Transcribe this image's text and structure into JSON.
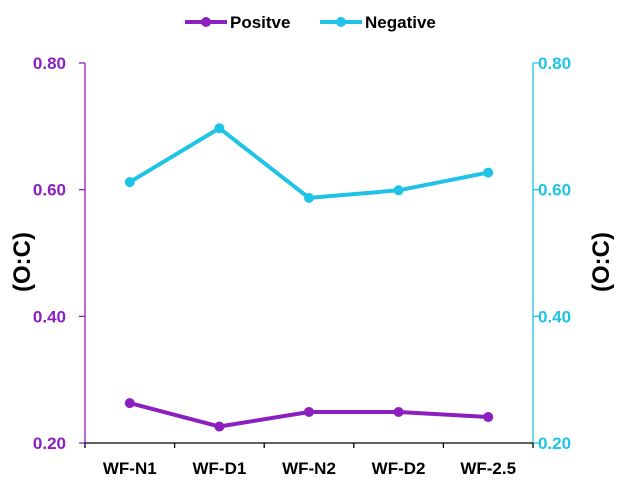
{
  "chart_data": {
    "type": "line",
    "title": "",
    "categories": [
      "WF-N1",
      "WF-D1",
      "WF-N2",
      "WF-D2",
      "WF-2.5"
    ],
    "series": [
      {
        "name": "Positve",
        "axis": "left",
        "color": "#8B1FC0",
        "values": [
          0.263,
          0.226,
          0.249,
          0.249,
          0.241
        ]
      },
      {
        "name": "Negative",
        "axis": "right",
        "color": "#1EC3E6",
        "values": [
          0.612,
          0.697,
          0.587,
          0.599,
          0.627
        ]
      }
    ],
    "ylabel_left": "(O:C)",
    "ylabel_right": "(O:C)",
    "ylim_left": [
      0.2,
      0.8
    ],
    "ylim_right": [
      0.2,
      0.8
    ],
    "yticks_left": [
      "0.20",
      "0.40",
      "0.60",
      "0.80"
    ],
    "yticks_right": [
      "0.20",
      "0.40",
      "0.60",
      "0.80"
    ],
    "left_axis_color": "#8B1FC0",
    "right_axis_color": "#1EC3E6",
    "grid": false,
    "legend_position": "top-center"
  }
}
